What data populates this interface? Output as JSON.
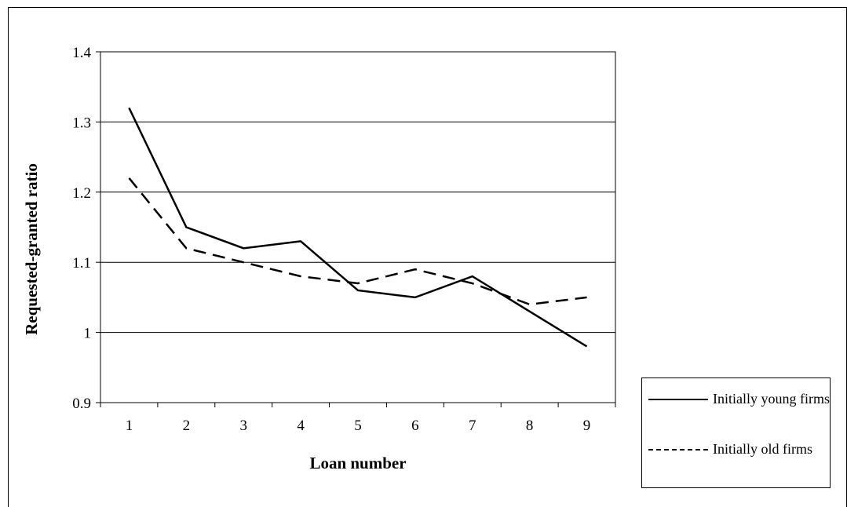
{
  "chart_data": {
    "type": "line",
    "title": "",
    "xlabel": "Loan number",
    "ylabel": "Requested-granted ratio",
    "categories": [
      "1",
      "2",
      "3",
      "4",
      "5",
      "6",
      "7",
      "8",
      "9"
    ],
    "ylim": [
      0.9,
      1.4
    ],
    "yticks": [
      "0.9",
      "1",
      "1.1",
      "1.2",
      "1.3",
      "1.4"
    ],
    "grid": true,
    "legend_position": "bottom-right",
    "series": [
      {
        "name": "Initially young firms",
        "style": "solid",
        "color": "#000000",
        "values": [
          1.32,
          1.15,
          1.12,
          1.13,
          1.06,
          1.05,
          1.08,
          1.03,
          0.98
        ]
      },
      {
        "name": "Initially old firms",
        "style": "dashed",
        "color": "#000000",
        "values": [
          1.22,
          1.12,
          1.1,
          1.08,
          1.07,
          1.09,
          1.07,
          1.04,
          1.05
        ]
      }
    ]
  },
  "legend": {
    "young_label": "Initially young firms",
    "old_label": "Initially old firms"
  }
}
